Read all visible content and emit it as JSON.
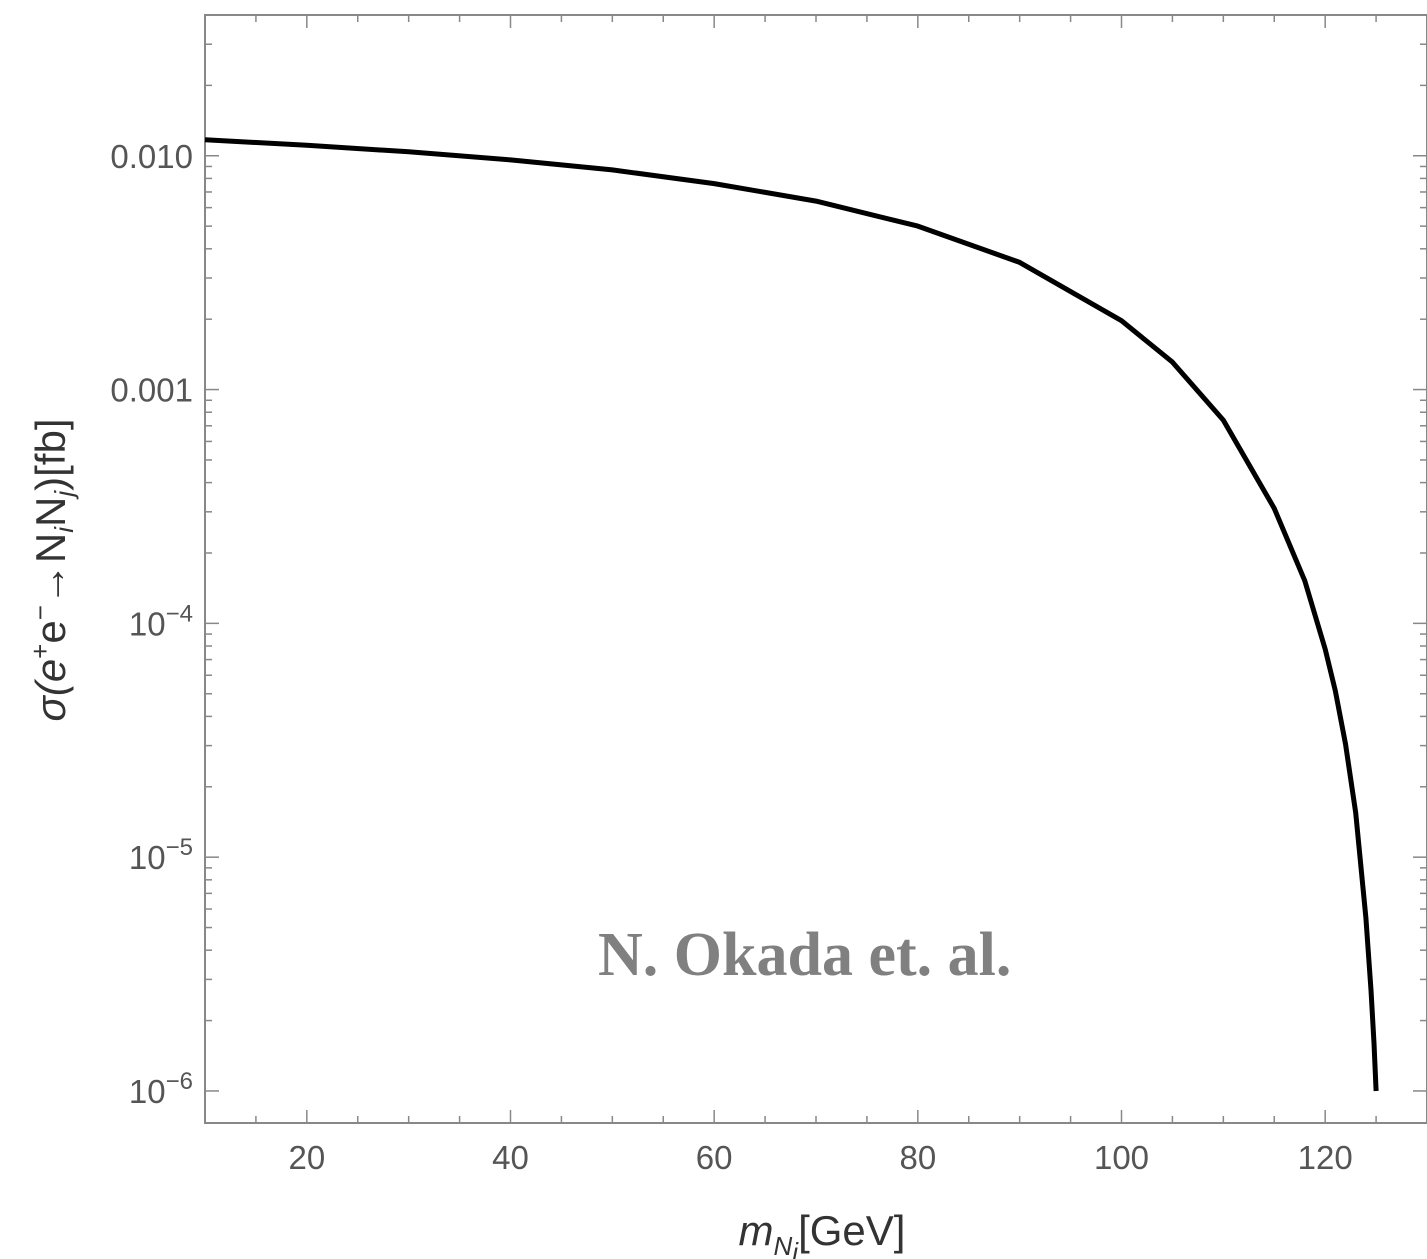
{
  "chart_data": {
    "type": "line",
    "xlabel": {
      "main": "m",
      "sub": "N",
      "subsub": "i",
      "unit": "[GeV]"
    },
    "ylabel": {
      "pre": "σ(e",
      "sup1": "+",
      "mid": "e",
      "sup2": "−",
      "arrow": "→N",
      "s1": "i",
      "n2": "N",
      "s2": "j",
      "post": ")[fb]"
    },
    "x_range": [
      10,
      130
    ],
    "y_range": [
      1e-06,
      0.04
    ],
    "y_scale": "log",
    "x_ticks": [
      {
        "v": 20,
        "label": "20"
      },
      {
        "v": 40,
        "label": "40"
      },
      {
        "v": 60,
        "label": "60"
      },
      {
        "v": 80,
        "label": "80"
      },
      {
        "v": 100,
        "label": "100"
      },
      {
        "v": 120,
        "label": "120"
      }
    ],
    "y_ticks": [
      {
        "v": 0.01,
        "label": "0.010"
      },
      {
        "v": 0.001,
        "label": "0.001"
      },
      {
        "v": 0.0001,
        "base": "10",
        "exp": "−4"
      },
      {
        "v": 1e-05,
        "base": "10",
        "exp": "−5"
      },
      {
        "v": 1e-06,
        "base": "10",
        "exp": "−6"
      }
    ],
    "series": [
      {
        "color": "#000000",
        "x": [
          10,
          20,
          30,
          40,
          50,
          60,
          70,
          80,
          90,
          100,
          105,
          110,
          115,
          118,
          120,
          121,
          122,
          123,
          124,
          124.5,
          124.8,
          125
        ],
        "y": [
          0.0117,
          0.0111,
          0.0104,
          0.0096,
          0.0087,
          0.0076,
          0.0064,
          0.005,
          0.0035,
          0.00197,
          0.00131,
          0.00074,
          0.00031,
          0.000152,
          7.75e-05,
          5.15e-05,
          3.05e-05,
          1.55e-05,
          5.5e-06,
          2.7e-06,
          1.6e-06,
          1e-06
        ]
      }
    ],
    "annotation": "N. Okada et. al.",
    "grid": false
  }
}
